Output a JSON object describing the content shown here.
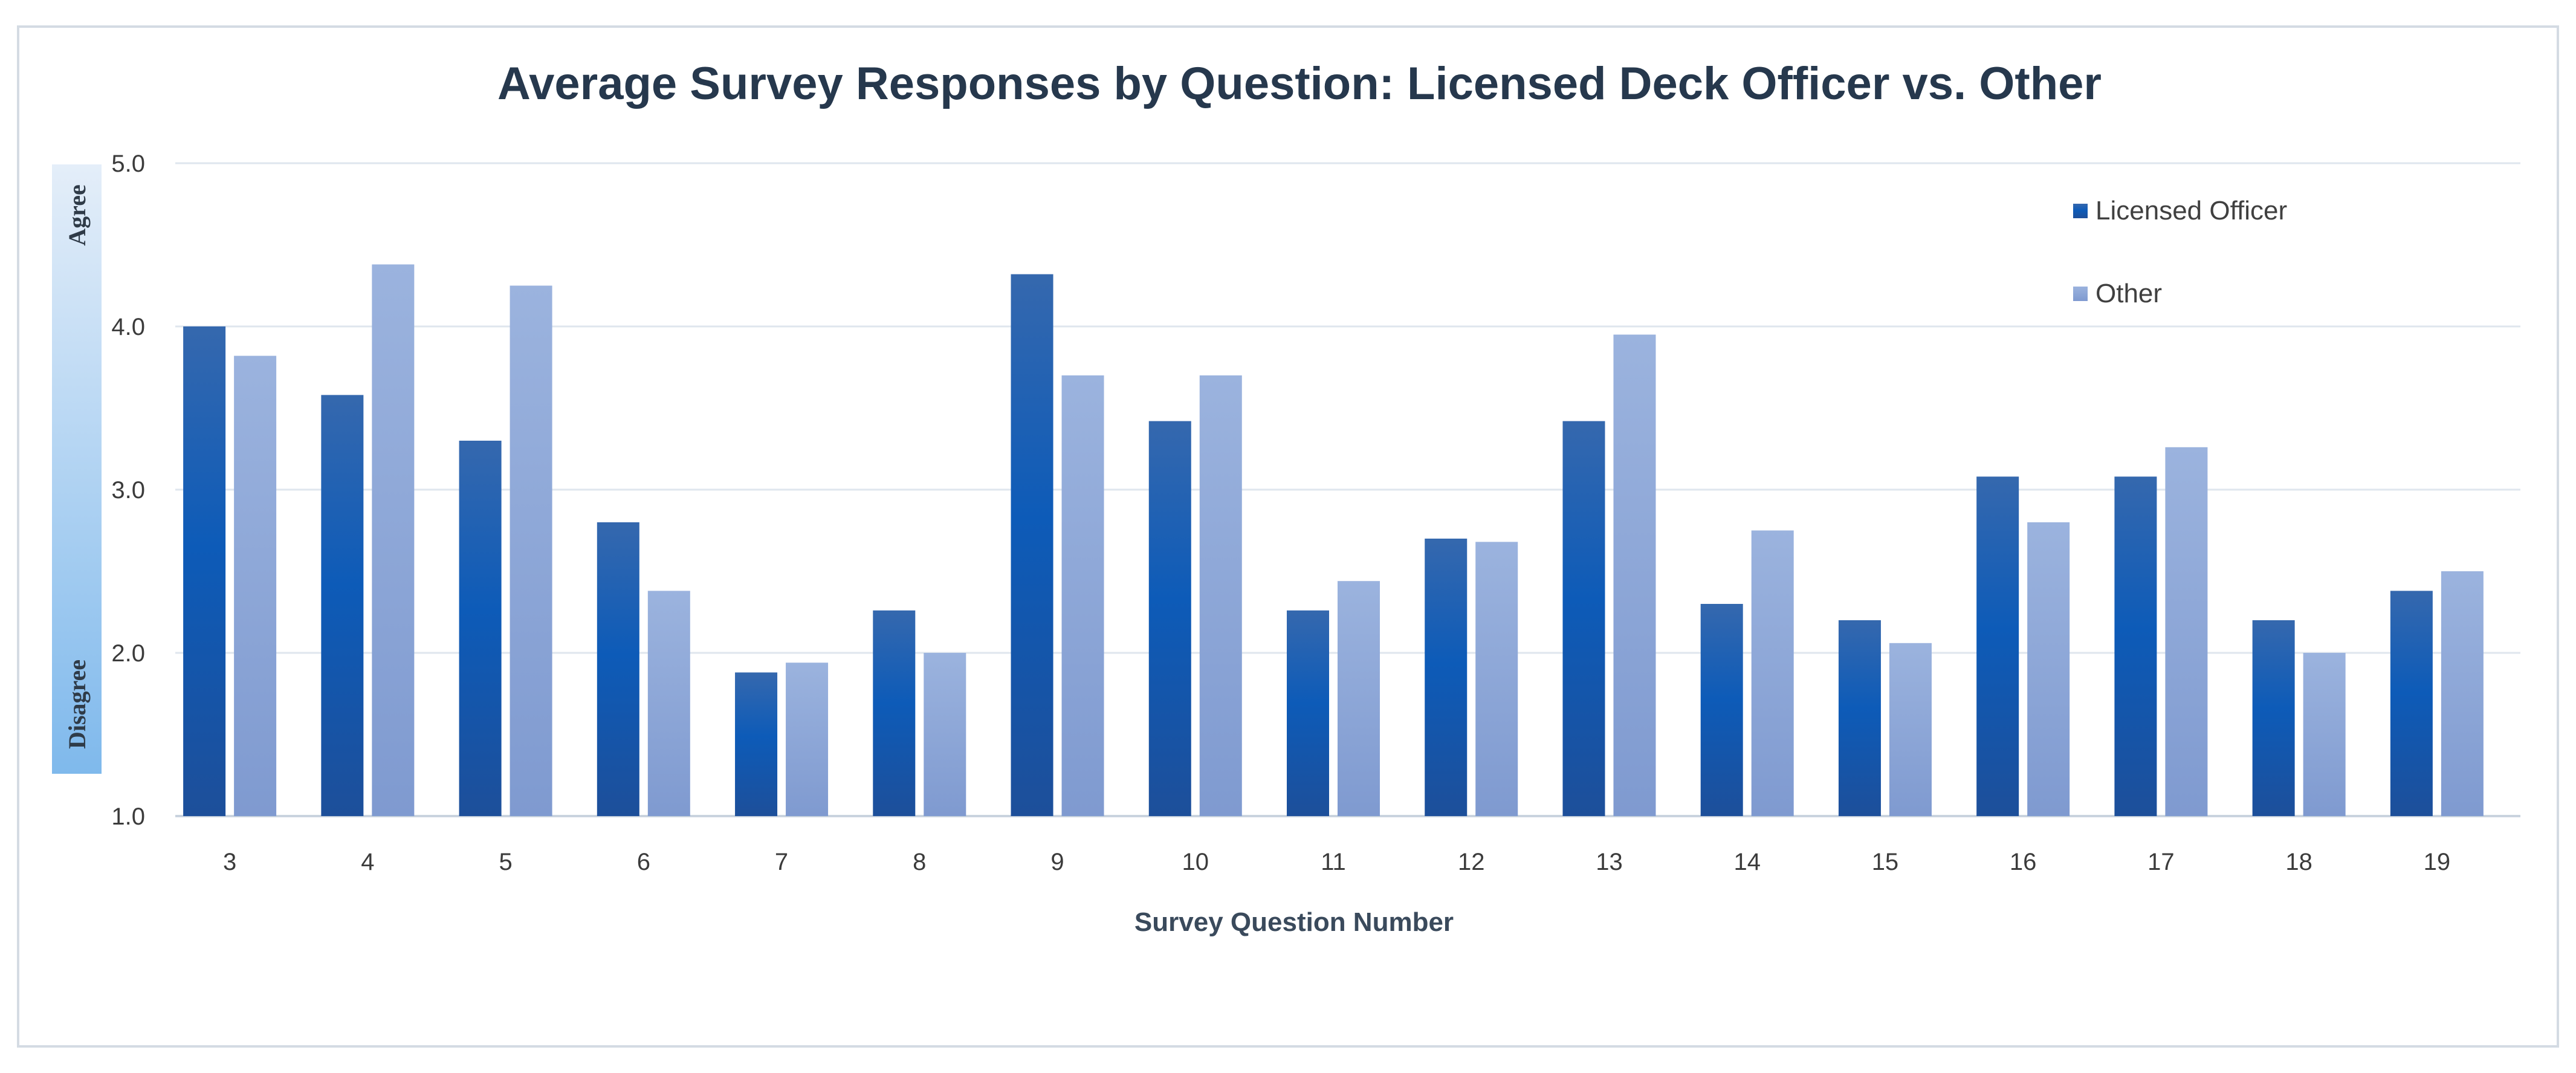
{
  "chart_data": {
    "type": "bar",
    "title": "Average Survey Responses by Question:  Licensed Deck Officer vs. Other",
    "xlabel": "Survey Question  Number",
    "ylabel": "",
    "ylim": [
      1.0,
      5.0
    ],
    "yticks": [
      "1.0",
      "2.0",
      "3.0",
      "4.0",
      "5.0"
    ],
    "grid": true,
    "legend_position": "top-right",
    "scale_labels": {
      "top": "Agree",
      "bottom": "Disagree"
    },
    "categories": [
      "3",
      "4",
      "5",
      "6",
      "7",
      "8",
      "9",
      "10",
      "11",
      "12",
      "13",
      "14",
      "15",
      "16",
      "17",
      "18",
      "19"
    ],
    "series": [
      {
        "name": "Licensed Officer",
        "color": "#1f5fb0",
        "values": [
          4.0,
          3.58,
          3.3,
          2.8,
          1.88,
          2.26,
          4.32,
          3.42,
          2.26,
          2.7,
          3.42,
          2.3,
          2.2,
          3.08,
          3.08,
          2.2,
          2.38
        ]
      },
      {
        "name": "Other",
        "color": "#8fa9d8",
        "values": [
          3.82,
          4.38,
          4.25,
          2.38,
          1.94,
          2.0,
          3.7,
          3.7,
          2.44,
          2.68,
          3.95,
          2.75,
          2.06,
          2.8,
          3.26,
          2.0,
          2.5
        ]
      }
    ]
  }
}
